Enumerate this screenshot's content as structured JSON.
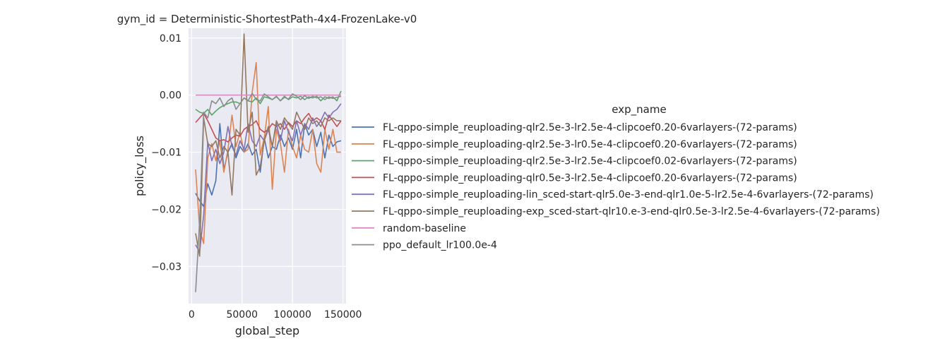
{
  "chart_data": {
    "type": "line",
    "title": "gym_id = Deterministic-ShortestPath-4x4-FrozenLake-v0",
    "xlabel": "global_step",
    "ylabel": "policy_loss",
    "xlim": [
      -3000,
      153000
    ],
    "ylim": [
      -0.0365,
      0.0117
    ],
    "xticks": [
      0,
      50000,
      100000,
      150000
    ],
    "xtick_labels": [
      "0",
      "50000",
      "100000",
      "150000"
    ],
    "yticks": [
      -0.03,
      -0.02,
      -0.01,
      0.0,
      0.01
    ],
    "ytick_labels": [
      "−0.03",
      "−0.02",
      "−0.01",
      "0.00",
      "0.01"
    ],
    "grid": true,
    "legend_title": "exp_name",
    "legend_position": "right",
    "series": [
      {
        "name": "FL-qppo-simple_reuploading-qlr2.5e-3-lr2.5e-4-clipcoef0.20-6varlayers-(72-params)",
        "color": "#4c72b0",
        "x": [
          4000,
          8000,
          12000,
          16000,
          20000,
          24000,
          28000,
          32000,
          36000,
          40000,
          44000,
          48000,
          52000,
          56000,
          60000,
          64000,
          68000,
          72000,
          76000,
          80000,
          84000,
          88000,
          92000,
          96000,
          100000,
          104000,
          108000,
          112000,
          116000,
          120000,
          124000,
          128000,
          132000,
          136000,
          140000,
          144000,
          148000
        ],
        "y": [
          -0.0172,
          -0.0185,
          -0.0195,
          -0.0155,
          -0.0175,
          -0.015,
          -0.005,
          -0.013,
          -0.01,
          -0.0085,
          -0.011,
          -0.009,
          -0.01,
          -0.0085,
          -0.0105,
          -0.0095,
          -0.0135,
          -0.0075,
          -0.011,
          -0.009,
          -0.0095,
          -0.007,
          -0.009,
          -0.0075,
          -0.0095,
          -0.006,
          -0.011,
          -0.005,
          -0.007,
          -0.006,
          -0.009,
          -0.0065,
          -0.011,
          -0.007,
          -0.009,
          -0.0082,
          -0.008
        ]
      },
      {
        "name": "FL-qppo-simple_reuploading-qlr2.5e-3-lr0.5e-4-clipcoef0.20-6varlayers-(72-params)",
        "color": "#dd8452",
        "x": [
          4000,
          8000,
          12000,
          16000,
          20000,
          24000,
          28000,
          32000,
          36000,
          40000,
          44000,
          48000,
          52000,
          56000,
          60000,
          64000,
          68000,
          72000,
          76000,
          80000,
          84000,
          88000,
          92000,
          96000,
          100000,
          104000,
          108000,
          112000,
          116000,
          120000,
          124000,
          128000,
          132000,
          136000,
          140000,
          144000,
          148000
        ],
        "y": [
          -0.013,
          -0.0235,
          -0.026,
          -0.011,
          -0.0085,
          -0.0115,
          -0.008,
          -0.0135,
          -0.0095,
          -0.0035,
          -0.009,
          -0.0065,
          -0.01,
          -0.0095,
          0.0005,
          0.0057,
          -0.0105,
          -0.0075,
          -0.002,
          -0.0165,
          -0.006,
          -0.0085,
          -0.0135,
          -0.006,
          -0.009,
          -0.011,
          -0.007,
          -0.0095,
          -0.01,
          -0.006,
          -0.012,
          -0.0135,
          -0.006,
          -0.0095,
          -0.006,
          -0.01,
          -0.01
        ]
      },
      {
        "name": "FL-qppo-simple_reuploading-qlr2.5e-3-lr2.5e-4-clipcoef0.02-6varlayers-(72-params)",
        "color": "#55a868",
        "x": [
          4000,
          8000,
          12000,
          16000,
          20000,
          24000,
          28000,
          32000,
          36000,
          40000,
          44000,
          48000,
          52000,
          56000,
          60000,
          64000,
          68000,
          72000,
          76000,
          80000,
          84000,
          88000,
          92000,
          96000,
          100000,
          104000,
          108000,
          112000,
          116000,
          120000,
          124000,
          128000,
          132000,
          136000,
          140000,
          144000,
          148000
        ],
        "y": [
          -0.0025,
          -0.003,
          -0.0032,
          -0.0025,
          -0.0035,
          -0.0028,
          -0.0022,
          -0.0018,
          -0.0015,
          -0.0012,
          -0.0012,
          -0.0015,
          -0.0005,
          -0.001,
          -0.0012,
          -0.0005,
          -0.0015,
          -0.0003,
          -0.0005,
          -0.0008,
          -0.0003,
          -0.001,
          -0.0002,
          -0.0008,
          -0.0003,
          -0.0005,
          -0.0002,
          -0.0008,
          -0.0003,
          -0.0005,
          -0.0002,
          -0.001,
          -0.0003,
          -0.0006,
          -0.0003,
          -0.001,
          0.0007
        ]
      },
      {
        "name": "FL-qppo-simple_reuploading-qlr0.5e-3-lr2.5e-4-clipcoef0.20-6varlayers-(72-params)",
        "color": "#c44e52",
        "x": [
          4000,
          8000,
          12000,
          16000,
          20000,
          24000,
          28000,
          32000,
          36000,
          40000,
          44000,
          48000,
          52000,
          56000,
          60000,
          64000,
          68000,
          72000,
          76000,
          80000,
          84000,
          88000,
          92000,
          96000,
          100000,
          104000,
          108000,
          112000,
          116000,
          120000,
          124000,
          128000,
          132000,
          136000,
          140000,
          144000,
          148000
        ],
        "y": [
          -0.0048,
          -0.004,
          -0.0032,
          -0.0045,
          -0.006,
          -0.0075,
          -0.008,
          -0.0078,
          -0.0082,
          -0.0075,
          -0.007,
          -0.0072,
          -0.006,
          -0.0055,
          -0.0052,
          -0.0045,
          -0.006,
          -0.0065,
          -0.006,
          -0.005,
          -0.0055,
          -0.005,
          -0.006,
          -0.0048,
          -0.0055,
          -0.0045,
          -0.005,
          -0.004,
          -0.0032,
          -0.0045,
          -0.004,
          -0.0045,
          -0.006,
          -0.0035,
          -0.0045,
          -0.0055,
          -0.0045
        ]
      },
      {
        "name": "FL-qppo-simple_reuploading-lin_sced-start-qlr5.0e-3-end-qlr1.0e-5-lr2.5e-4-6varlayers-(72-params)",
        "color": "#8172b3",
        "x": [
          4000,
          8000,
          12000,
          16000,
          20000,
          24000,
          28000,
          32000,
          36000,
          40000,
          44000,
          48000,
          52000,
          56000,
          60000,
          64000,
          68000,
          72000,
          76000,
          80000,
          84000,
          88000,
          92000,
          96000,
          100000,
          104000,
          108000,
          112000,
          116000,
          120000,
          124000,
          128000,
          132000,
          136000,
          140000,
          144000,
          148000
        ],
        "y": [
          -0.0262,
          -0.0275,
          -0.021,
          -0.0082,
          -0.0115,
          -0.0095,
          -0.012,
          -0.01,
          -0.0055,
          -0.009,
          -0.0105,
          -0.008,
          -0.0095,
          -0.005,
          -0.008,
          -0.009,
          -0.007,
          -0.008,
          -0.006,
          -0.009,
          -0.005,
          -0.008,
          -0.0045,
          -0.0065,
          -0.008,
          -0.0045,
          -0.007,
          -0.005,
          -0.006,
          -0.004,
          -0.0055,
          -0.0045,
          -0.003,
          -0.004,
          -0.003,
          -0.0025,
          -0.0015
        ]
      },
      {
        "name": "FL-qppo-simple_reuploading-exp_sced-start-qlr10.e-3-end-qlr0.5e-3-lr2.5e-4-6varlayers-(72-params)",
        "color": "#937860",
        "x": [
          4000,
          8000,
          12000,
          16000,
          20000,
          24000,
          28000,
          32000,
          36000,
          40000,
          44000,
          48000,
          52000,
          56000,
          60000,
          64000,
          68000,
          72000,
          76000,
          80000,
          84000,
          88000,
          92000,
          96000,
          100000,
          104000,
          108000,
          112000,
          116000,
          120000,
          124000,
          128000,
          132000,
          136000,
          140000,
          144000,
          148000
        ],
        "y": [
          -0.0242,
          -0.0282,
          -0.004,
          -0.0085,
          -0.009,
          -0.008,
          -0.011,
          -0.009,
          -0.01,
          -0.0175,
          -0.006,
          -0.007,
          0.0107,
          -0.0065,
          -0.003,
          -0.014,
          -0.0125,
          -0.008,
          -0.0055,
          -0.009,
          -0.0045,
          -0.006,
          -0.004,
          -0.005,
          -0.006,
          -0.003,
          -0.0045,
          -0.006,
          -0.004,
          -0.005,
          -0.0045,
          -0.0055,
          -0.004,
          -0.0045,
          -0.004,
          -0.0045,
          -0.0045
        ]
      },
      {
        "name": "random-baseline",
        "color": "#da8bc3",
        "x": [
          4000,
          148000
        ],
        "y": [
          0.0,
          0.0
        ]
      },
      {
        "name": "ppo_default_lr100.0e-4",
        "color": "#8c8c8c",
        "x": [
          4000,
          8000,
          12000,
          16000,
          20000,
          24000,
          28000,
          32000,
          36000,
          40000,
          44000,
          48000,
          52000,
          56000,
          60000,
          64000,
          68000,
          72000,
          76000,
          80000,
          84000,
          88000,
          92000,
          96000,
          100000,
          104000,
          108000,
          112000,
          116000,
          120000,
          124000,
          128000,
          132000,
          136000,
          140000,
          144000,
          148000
        ],
        "y": [
          -0.0345,
          -0.022,
          -0.003,
          -0.004,
          -0.001,
          -0.0015,
          -0.0005,
          -0.002,
          -0.001,
          -0.0005,
          -0.0025,
          -0.0015,
          -0.0005,
          -0.001,
          0.0003,
          -0.0008,
          -0.001,
          0.0002,
          -0.0003,
          -0.0008,
          -0.0002,
          -0.001,
          -0.0004,
          -0.0007,
          0.0002,
          -0.0002,
          -0.0008,
          -0.0001,
          -0.0006,
          -0.0002,
          -0.0005,
          -0.0003,
          -0.0008,
          -0.0003,
          -0.0006,
          -0.0004,
          -0.0002
        ]
      }
    ]
  }
}
